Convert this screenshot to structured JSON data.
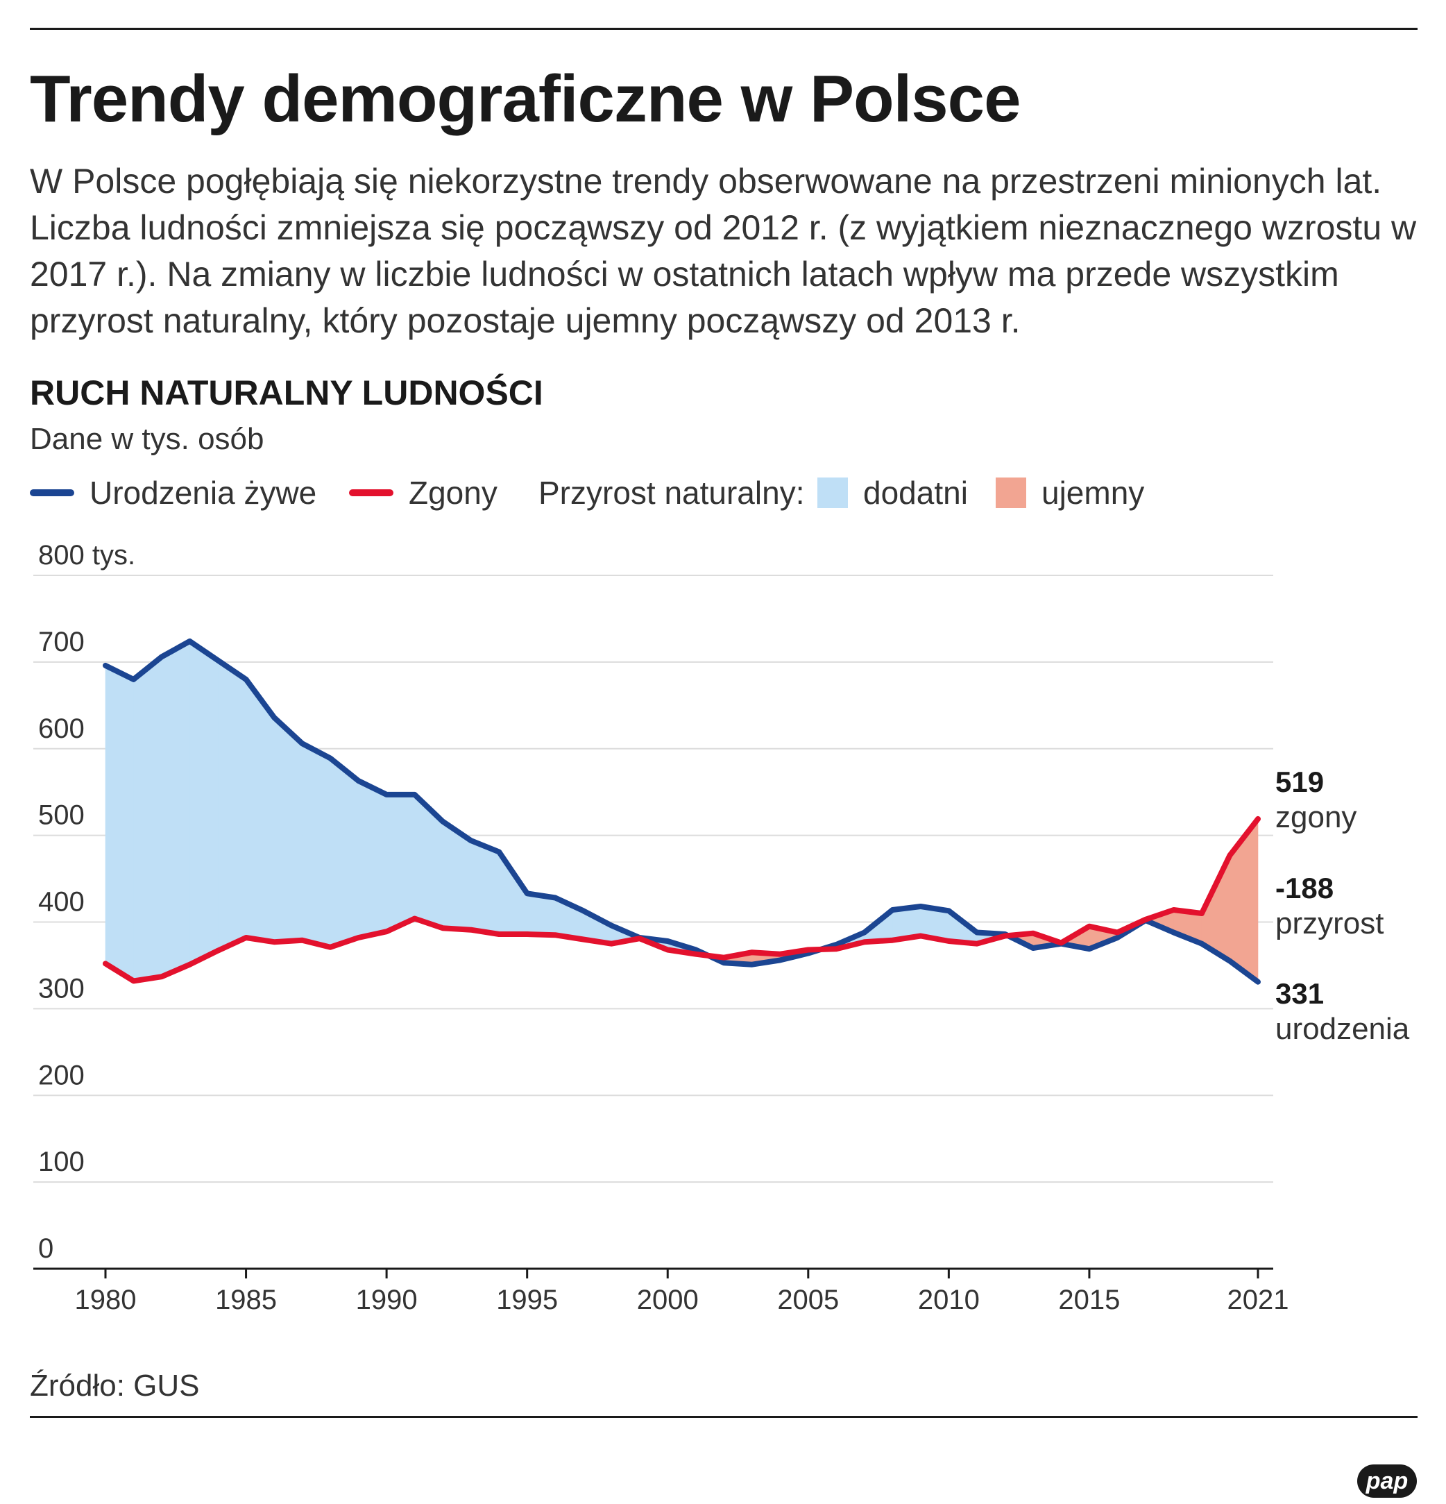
{
  "header": {
    "title": "Trendy demograficzne w Polsce",
    "intro": "W Polsce pogłębiają się niekorzystne trendy obserwowane na przestrzeni minionych lat. Liczba ludności zmniejsza się począwszy od 2012 r. (z wyjątkiem nieznacznego wzrostu w  2017 r.). Na zmiany w liczbie ludności w ostatnich latach wpływ ma przede wszystkim przyrost naturalny, który pozostaje ujemny począwszy od 2013 r."
  },
  "chart_title": "RUCH NATURALNY LUDNOŚCI",
  "unit_note": "Dane w tys. osób",
  "legend": {
    "births": "Urodzenia żywe",
    "deaths": "Zgony",
    "growth_label": "Przyrost naturalny:",
    "positive": "dodatni",
    "negative": "ujemny"
  },
  "colors": {
    "births": "#1b4592",
    "deaths": "#e3112d",
    "positive": "#bfdff6",
    "negative": "#f2a592",
    "grid": "#dcdcdc",
    "axis": "#1a1a1a"
  },
  "chart_data": {
    "type": "line",
    "title": "RUCH NATURALNY LUDNOŚCI",
    "ylabel": "Dane w tys. osób",
    "xlabel": "",
    "ylim": [
      0,
      800
    ],
    "yticks": [
      0,
      100,
      200,
      300,
      400,
      500,
      600,
      700,
      800
    ],
    "ytick_labels": [
      "0",
      "100",
      "200",
      "300",
      "400",
      "500",
      "600",
      "700",
      "800 tys."
    ],
    "xlim": [
      1980,
      2021
    ],
    "xticks": [
      1980,
      1985,
      1990,
      1995,
      2000,
      2005,
      2010,
      2015,
      2021
    ],
    "xtick_labels": [
      "1980",
      "1985",
      "1990",
      "1995",
      "2000",
      "2005",
      "2010",
      "2015",
      "2021"
    ],
    "grid": true,
    "x": [
      1980,
      1981,
      1982,
      1983,
      1984,
      1985,
      1986,
      1987,
      1988,
      1989,
      1990,
      1991,
      1992,
      1993,
      1994,
      1995,
      1996,
      1997,
      1998,
      1999,
      2000,
      2001,
      2002,
      2003,
      2004,
      2005,
      2006,
      2007,
      2008,
      2009,
      2010,
      2011,
      2012,
      2013,
      2014,
      2015,
      2016,
      2017,
      2018,
      2019,
      2020,
      2021
    ],
    "series": [
      {
        "name": "Urodzenia żywe",
        "values": [
          696,
          680,
          706,
          724,
          702,
          680,
          636,
          606,
          589,
          563,
          547,
          547,
          516,
          494,
          481,
          433,
          428,
          413,
          396,
          382,
          378,
          368,
          353,
          351,
          356,
          364,
          374,
          388,
          414,
          418,
          413,
          388,
          386,
          370,
          375,
          369,
          382,
          402,
          388,
          375,
          355,
          331
        ]
      },
      {
        "name": "Zgony",
        "values": [
          352,
          332,
          337,
          351,
          367,
          382,
          377,
          379,
          371,
          382,
          389,
          404,
          393,
          391,
          386,
          386,
          385,
          380,
          375,
          381,
          368,
          363,
          359,
          365,
          363,
          368,
          369,
          377,
          379,
          384,
          378,
          375,
          384,
          387,
          376,
          395,
          388,
          403,
          414,
          410,
          477,
          519
        ]
      }
    ],
    "fill": {
      "positive_label": "dodatni",
      "negative_label": "ujemny"
    },
    "end_labels": {
      "deaths_value": "519",
      "deaths_caption": "zgony",
      "growth_value": "-188",
      "growth_caption": "przyrost",
      "births_value": "331",
      "births_caption": "urodzenia"
    }
  },
  "source": "Źródło: GUS",
  "logo_text": "pap"
}
